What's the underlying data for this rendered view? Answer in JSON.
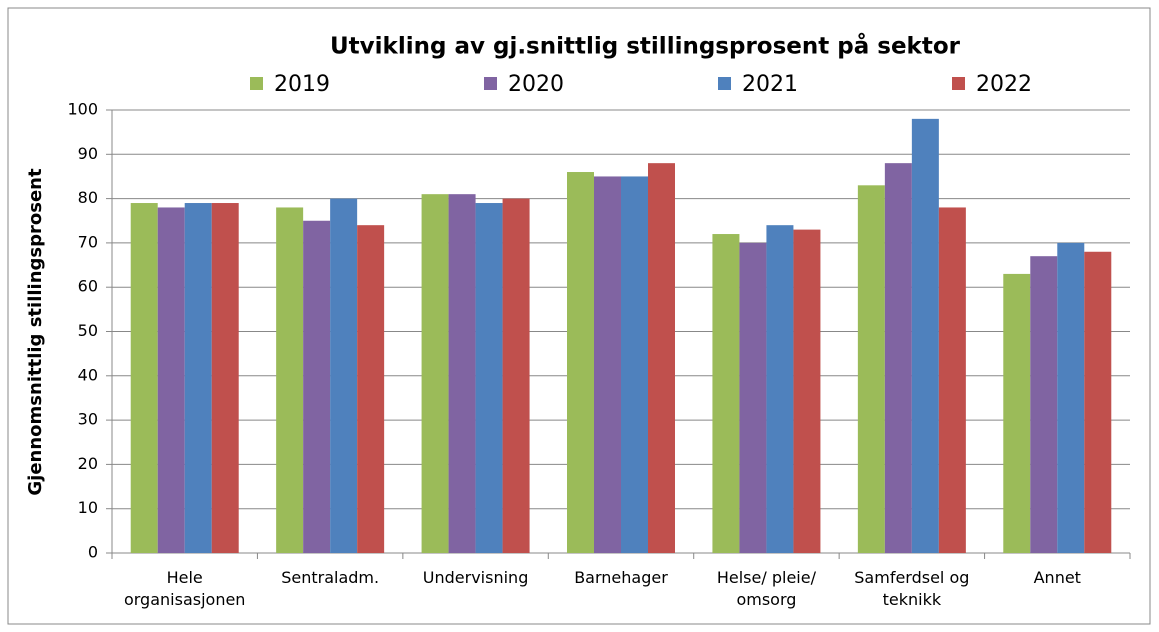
{
  "chart_data": {
    "type": "bar",
    "title": "Utvikling av gj.snittlig stillingsprosent på sektor",
    "y_label": "Gjennomsnittlig stillingsprosent",
    "categories": [
      "Hele\norganisasjonen",
      "Sentraladm.",
      "Undervisning",
      "Barnehager",
      "Helse/ pleie/\nomsorg",
      "Samferdsel og\nteknikk",
      "Annet"
    ],
    "series": [
      {
        "name": "2019",
        "color": "#9bbb59",
        "values": [
          79,
          78,
          81,
          86,
          72,
          83,
          63
        ]
      },
      {
        "name": "2020",
        "color": "#8064a2",
        "values": [
          78,
          75,
          81,
          85,
          70,
          88,
          67
        ]
      },
      {
        "name": "2021",
        "color": "#4f81bd",
        "values": [
          79,
          80,
          79,
          85,
          74,
          98,
          70
        ]
      },
      {
        "name": "2022",
        "color": "#c0504d",
        "values": [
          79,
          74,
          80,
          88,
          73,
          78,
          68
        ]
      }
    ],
    "ylim": [
      0,
      100
    ],
    "yticks": [
      0,
      10,
      20,
      30,
      40,
      50,
      60,
      70,
      80,
      90,
      100
    ],
    "grid": true,
    "legend": "top"
  }
}
